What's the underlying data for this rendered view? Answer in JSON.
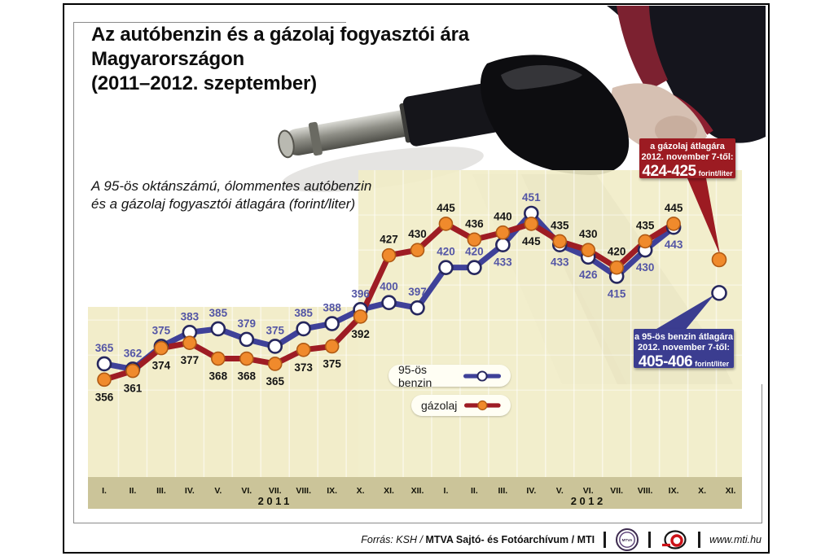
{
  "title": {
    "lines": [
      "Az autóbenzin és a gázolaj fogyasztói ára",
      "Magyarországon",
      "(2011–2012. szeptember)"
    ]
  },
  "subtitle": {
    "lines": [
      "A 95-ös oktánszámú, ólommentes autóbenzin",
      "és a gázolaj fogyasztói átlagára (forint/liter)"
    ]
  },
  "legend": {
    "benzin_label": "95-ös benzin",
    "gazolaj_label": "gázolaj"
  },
  "callouts": {
    "gazolaj": {
      "line1": "a gázolaj átlagára",
      "line2": "2012. november 7-től:",
      "value": "424-425",
      "unit": "forint/liter",
      "color": "#9c1b22"
    },
    "benzin": {
      "line1": "a 95-ös benzin átlagára",
      "line2": "2012. november 7-től:",
      "value": "405-406",
      "unit": "forint/liter",
      "color": "#3b3d90"
    }
  },
  "footer": {
    "source_italic": "Forrás: KSH /",
    "source_bold": "MTVA Sajtó- és Fotóarchívum / MTI",
    "website": "www.mti.hu",
    "mtva_logo_text": "MTVA"
  },
  "chart_data": {
    "type": "line",
    "title": "Az autóbenzin és a gázolaj fogyasztói ára Magyarországon (2011–2012. szeptember)",
    "ylabel": "forint/liter",
    "ylim": [
      350,
      460
    ],
    "grid": true,
    "legend_position": "inside-bottom-center",
    "categories": [
      "I.",
      "II.",
      "III.",
      "IV.",
      "V.",
      "VI.",
      "VII.",
      "VIII.",
      "IX.",
      "X.",
      "XI.",
      "XII.",
      "I.",
      "II.",
      "III.",
      "IV.",
      "V.",
      "VI.",
      "VII.",
      "VIII.",
      "IX.",
      "X.",
      "XI."
    ],
    "year_groups": [
      {
        "label": "2011",
        "center_index": 6
      },
      {
        "label": "2012",
        "center_index": 17
      }
    ],
    "colors": {
      "plot_bg": "#f1ecc6",
      "axis_band": "#cbc499",
      "grid": "#ffffff"
    },
    "series": [
      {
        "key": "benzin",
        "name": "95-ös benzin",
        "color": "#3f4199",
        "marker_fill": "#ffffff",
        "marker_stroke": "#26275e",
        "label_color": "#5355a5",
        "values": [
          365,
          362,
          375,
          383,
          385,
          379,
          375,
          385,
          388,
          396,
          400,
          397,
          420,
          420,
          433,
          451,
          433,
          426,
          415,
          430,
          443,
          null,
          null
        ],
        "label_pos": [
          "a",
          "a",
          "a",
          "a",
          "a",
          "a",
          "a",
          "a",
          "a",
          "a",
          "a",
          "a",
          "a",
          "a",
          "b",
          "a",
          "b",
          "b",
          "b",
          "b",
          "b",
          null,
          null
        ]
      },
      {
        "key": "gazolaj",
        "name": "gázolaj",
        "color": "#9e1c24",
        "marker_fill": "#f08a2c",
        "marker_stroke": "#b05a14",
        "label_color": "#141414",
        "values": [
          356,
          361,
          374,
          377,
          368,
          368,
          365,
          373,
          375,
          392,
          427,
          430,
          445,
          436,
          440,
          445,
          435,
          430,
          420,
          435,
          445,
          null,
          null
        ],
        "label_pos": [
          "b",
          "b",
          "b",
          "b",
          "b",
          "b",
          "b",
          "b",
          "b",
          "b",
          "a",
          "a",
          "a",
          "a",
          "a",
          "b",
          "a",
          "a",
          "a",
          "a",
          "a",
          null,
          null
        ]
      }
    ],
    "extra_points": [
      {
        "series_index": 1,
        "value": 424.5,
        "note": "gázolaj átlagára 2012. november 7-től: 424-425 forint/liter"
      },
      {
        "series_index": 0,
        "value": 405.5,
        "note": "95-ös benzin átlagára 2012. november 7-től: 405-406 forint/liter"
      }
    ]
  }
}
